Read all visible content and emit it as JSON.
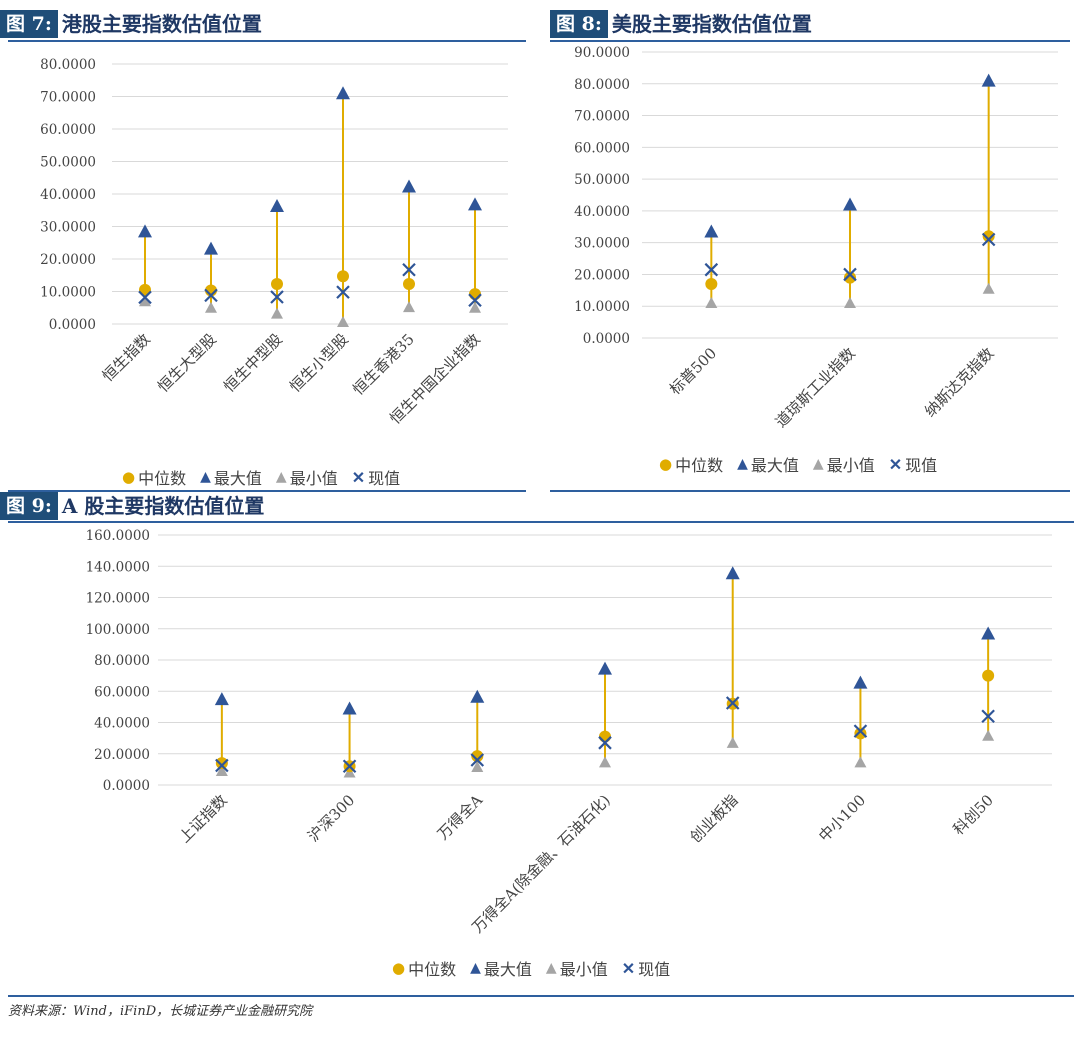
{
  "figures": [
    {
      "fig_label": "图 7:",
      "title": "港股主要指数估值位置"
    },
    {
      "fig_label": "图 8:",
      "title": "美股主要指数估值位置"
    },
    {
      "fig_label": "图 9:",
      "title": "A 股主要指数估值位置"
    }
  ],
  "legend": {
    "median": "中位数",
    "max": "最大值",
    "min": "最小值",
    "current": "现值"
  },
  "colors": {
    "median": "#e0ac00",
    "max": "#2f5597",
    "min": "#a5a5a5",
    "current": "#2f5597",
    "line": "#e0ac00",
    "title_bar": "#1f4e79"
  },
  "source": "资料来源：Wind，iFinD，长城证券产业金融研究院",
  "chart_data": [
    {
      "type": "scatter",
      "categories": [
        "恒生指数",
        "恒生大型股",
        "恒生中型股",
        "恒生小型股",
        "恒生香港35",
        "恒生中国企业指数"
      ],
      "series": [
        {
          "name": "中位数",
          "values": [
            10.5,
            10.3,
            12.3,
            14.7,
            12.3,
            9.2
          ]
        },
        {
          "name": "最大值",
          "values": [
            28.5,
            23.2,
            36.3,
            71.0,
            42.3,
            36.8
          ]
        },
        {
          "name": "最小值",
          "values": [
            7.0,
            5.0,
            3.2,
            0.6,
            5.2,
            5.0
          ]
        },
        {
          "name": "现值",
          "values": [
            8.2,
            8.8,
            8.3,
            9.8,
            16.7,
            7.3
          ]
        }
      ],
      "ylim": [
        0,
        80
      ],
      "yticks": [
        "80.0000",
        "70.0000",
        "60.0000",
        "50.0000",
        "40.0000",
        "30.0000",
        "20.0000",
        "10.0000",
        "0.0000"
      ],
      "grid": true
    },
    {
      "type": "scatter",
      "categories": [
        "标普500",
        "道琼斯工业指数",
        "纳斯达克指数"
      ],
      "series": [
        {
          "name": "中位数",
          "values": [
            17.0,
            19.0,
            32.0
          ]
        },
        {
          "name": "最大值",
          "values": [
            33.5,
            42.0,
            81.0
          ]
        },
        {
          "name": "最小值",
          "values": [
            11.0,
            11.0,
            15.5
          ]
        },
        {
          "name": "现值",
          "values": [
            21.5,
            20.0,
            31.0
          ]
        }
      ],
      "ylim": [
        0,
        90
      ],
      "yticks": [
        "90.0000",
        "80.0000",
        "70.0000",
        "60.0000",
        "50.0000",
        "40.0000",
        "30.0000",
        "20.0000",
        "10.0000",
        "0.0000"
      ],
      "grid": true
    },
    {
      "type": "scatter",
      "categories": [
        "上证指数",
        "沪深300",
        "万得全A",
        "万得全A(除金融、石油石化)",
        "创业板指",
        "中小100",
        "科创50"
      ],
      "series": [
        {
          "name": "中位数",
          "values": [
            14.0,
            12.0,
            18.5,
            31.0,
            52.0,
            33.0,
            70.0
          ]
        },
        {
          "name": "最大值",
          "values": [
            55.0,
            49.0,
            56.5,
            74.5,
            135.5,
            65.5,
            97.0
          ]
        },
        {
          "name": "最小值",
          "values": [
            9.0,
            8.0,
            11.5,
            14.5,
            27.0,
            14.5,
            31.5
          ]
        },
        {
          "name": "现值",
          "values": [
            12.5,
            12.0,
            16.0,
            27.0,
            52.5,
            34.5,
            44.0
          ]
        }
      ],
      "ylim": [
        0,
        160
      ],
      "yticks": [
        "160.0000",
        "140.0000",
        "120.0000",
        "100.0000",
        "80.0000",
        "60.0000",
        "40.0000",
        "20.0000",
        "0.0000"
      ],
      "grid": true
    }
  ]
}
